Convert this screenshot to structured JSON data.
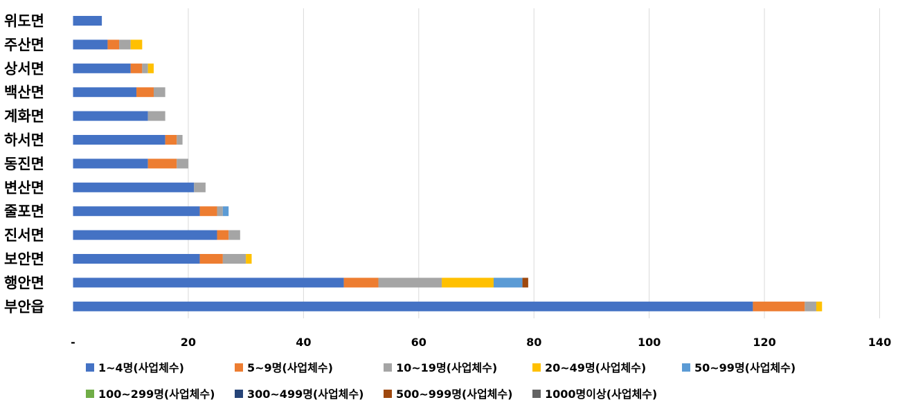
{
  "chart_data": {
    "type": "bar",
    "orientation": "horizontal",
    "stacked": true,
    "categories": [
      "위도면",
      "주산면",
      "상서면",
      "백산면",
      "계화면",
      "하서면",
      "동진면",
      "변산면",
      "줄포면",
      "진서면",
      "보안면",
      "행안면",
      "부안읍"
    ],
    "series": [
      {
        "name": "1~4명(사업체수)",
        "color": "#4472C4",
        "values": [
          5,
          6,
          10,
          11,
          13,
          16,
          13,
          21,
          22,
          25,
          22,
          47,
          118
        ]
      },
      {
        "name": "5~9명(사업체수)",
        "color": "#ED7D31",
        "values": [
          0,
          2,
          2,
          3,
          0,
          2,
          5,
          0,
          3,
          2,
          4,
          6,
          9
        ]
      },
      {
        "name": "10~19명(사업체수)",
        "color": "#A5A5A5",
        "values": [
          0,
          2,
          1,
          2,
          3,
          1,
          2,
          2,
          1,
          2,
          4,
          11,
          2
        ]
      },
      {
        "name": "20~49명(사업체수)",
        "color": "#FFC000",
        "values": [
          0,
          2,
          1,
          0,
          0,
          0,
          0,
          0,
          0,
          0,
          1,
          9,
          1
        ]
      },
      {
        "name": "50~99명(사업체수)",
        "color": "#5B9BD5",
        "values": [
          0,
          0,
          0,
          0,
          0,
          0,
          0,
          0,
          1,
          0,
          0,
          5,
          0
        ]
      },
      {
        "name": "100~299명(사업체수)",
        "color": "#70AD47",
        "values": [
          0,
          0,
          0,
          0,
          0,
          0,
          0,
          0,
          0,
          0,
          0,
          0,
          0
        ]
      },
      {
        "name": "300~499명(사업체수)",
        "color": "#264478",
        "values": [
          0,
          0,
          0,
          0,
          0,
          0,
          0,
          0,
          0,
          0,
          0,
          0,
          0
        ]
      },
      {
        "name": "500~999명(사업체수)",
        "color": "#9E480E",
        "values": [
          0,
          0,
          0,
          0,
          0,
          0,
          0,
          0,
          0,
          0,
          0,
          1,
          0
        ]
      },
      {
        "name": "1000명이상(사업체수)",
        "color": "#636363",
        "values": [
          0,
          0,
          0,
          0,
          0,
          0,
          0,
          0,
          0,
          0,
          0,
          0,
          0
        ]
      }
    ],
    "xlim": [
      0,
      140
    ],
    "x_ticks": [
      0,
      20,
      40,
      60,
      80,
      100,
      120,
      140
    ],
    "x_tick_labels": [
      "-",
      "20",
      "40",
      "60",
      "80",
      "100",
      "120",
      "140"
    ],
    "grid": "vertical",
    "legend_position": "bottom"
  }
}
